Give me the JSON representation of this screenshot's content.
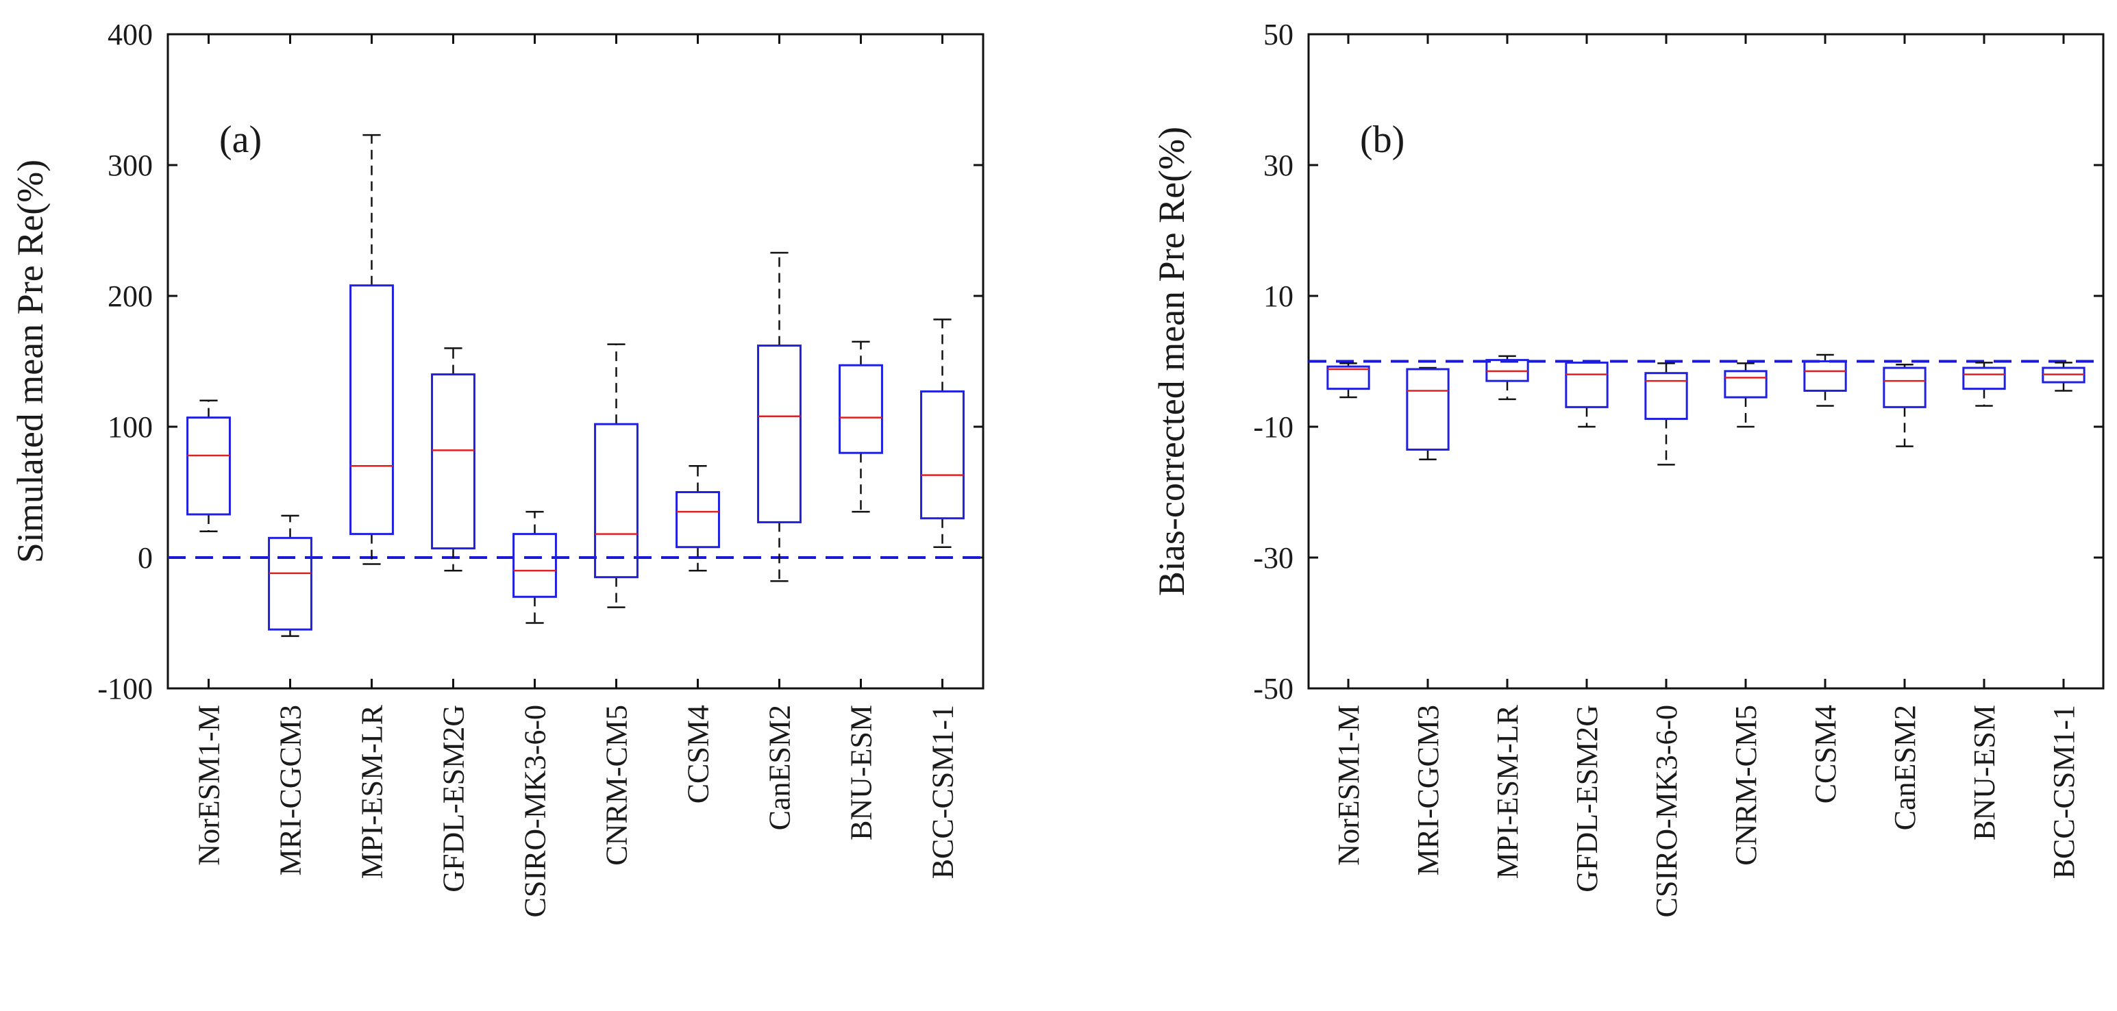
{
  "colors": {
    "box": "#2020e0",
    "median": "#e02020",
    "whisker": "#111111",
    "zero_line": "#1a1ad6",
    "axis": "#111111"
  },
  "chart_data": [
    {
      "type": "boxplot",
      "panel_label": "(a)",
      "ylabel": "Simulated mean Pre Re(%)",
      "ylim": [
        -100,
        400
      ],
      "yticks": [
        "400",
        "300",
        "200",
        "100",
        "0",
        "-100"
      ],
      "ytick_values": [
        400,
        300,
        200,
        100,
        0,
        -100
      ],
      "reference_line": 0,
      "grid": false,
      "categories": [
        "NorESM1-M",
        "MRI-CGCM3",
        "MPI-ESM-LR",
        "GFDL-ESM2G",
        "CSIRO-MK3-6-0",
        "CNRM-CM5",
        "CCSM4",
        "CanESM2",
        "BNU-ESM",
        "BCC-CSM1-1"
      ],
      "boxes": [
        {
          "whisker_low": 20,
          "q1": 33,
          "median": 78,
          "q3": 107,
          "whisker_high": 120
        },
        {
          "whisker_low": -60,
          "q1": -55,
          "median": -12,
          "q3": 15,
          "whisker_high": 32
        },
        {
          "whisker_low": -5,
          "q1": 18,
          "median": 70,
          "q3": 208,
          "whisker_high": 323
        },
        {
          "whisker_low": -10,
          "q1": 7,
          "median": 82,
          "q3": 140,
          "whisker_high": 160
        },
        {
          "whisker_low": -50,
          "q1": -30,
          "median": -10,
          "q3": 18,
          "whisker_high": 35
        },
        {
          "whisker_low": -38,
          "q1": -15,
          "median": 18,
          "q3": 102,
          "whisker_high": 163
        },
        {
          "whisker_low": -10,
          "q1": 8,
          "median": 35,
          "q3": 50,
          "whisker_high": 70
        },
        {
          "whisker_low": -18,
          "q1": 27,
          "median": 108,
          "q3": 162,
          "whisker_high": 233
        },
        {
          "whisker_low": 35,
          "q1": 80,
          "median": 107,
          "q3": 147,
          "whisker_high": 165
        },
        {
          "whisker_low": 8,
          "q1": 30,
          "median": 63,
          "q3": 127,
          "whisker_high": 182
        }
      ]
    },
    {
      "type": "boxplot",
      "panel_label": "(b)",
      "ylabel": "Bias-corrected mean Pre Re(%)",
      "ylim": [
        -50,
        50
      ],
      "yticks": [
        "50",
        "30",
        "10",
        "-10",
        "-30",
        "-50"
      ],
      "ytick_values": [
        50,
        30,
        10,
        -10,
        -30,
        -50
      ],
      "reference_line": 0,
      "grid": false,
      "categories": [
        "NorESM1-M",
        "MRI-CGCM3",
        "MPI-ESM-LR",
        "GFDL-ESM2G",
        "CSIRO-MK3-6-0",
        "CNRM-CM5",
        "CCSM4",
        "CanESM2",
        "BNU-ESM",
        "BCC-CSM1-1"
      ],
      "boxes": [
        {
          "whisker_low": -5.5,
          "q1": -4.2,
          "median": -1.2,
          "q3": -0.8,
          "whisker_high": -0.3
        },
        {
          "whisker_low": -15,
          "q1": -13.5,
          "median": -4.5,
          "q3": -1.2,
          "whisker_high": -1.0
        },
        {
          "whisker_low": -5.8,
          "q1": -3.0,
          "median": -1.5,
          "q3": 0.2,
          "whisker_high": 0.8
        },
        {
          "whisker_low": -10.0,
          "q1": -7.0,
          "median": -2.0,
          "q3": -0.2,
          "whisker_high": -0.2
        },
        {
          "whisker_low": -15.8,
          "q1": -8.8,
          "median": -3.0,
          "q3": -1.8,
          "whisker_high": -0.3
        },
        {
          "whisker_low": -10.0,
          "q1": -5.5,
          "median": -2.5,
          "q3": -1.5,
          "whisker_high": -0.3
        },
        {
          "whisker_low": -6.8,
          "q1": -4.5,
          "median": -1.5,
          "q3": 0.0,
          "whisker_high": 1.0
        },
        {
          "whisker_low": -13.0,
          "q1": -7.0,
          "median": -3.0,
          "q3": -1.0,
          "whisker_high": -0.5
        },
        {
          "whisker_low": -6.8,
          "q1": -4.2,
          "median": -2.0,
          "q3": -1.0,
          "whisker_high": -0.2
        },
        {
          "whisker_low": -4.5,
          "q1": -3.2,
          "median": -2.0,
          "q3": -1.0,
          "whisker_high": -0.2
        }
      ]
    }
  ]
}
